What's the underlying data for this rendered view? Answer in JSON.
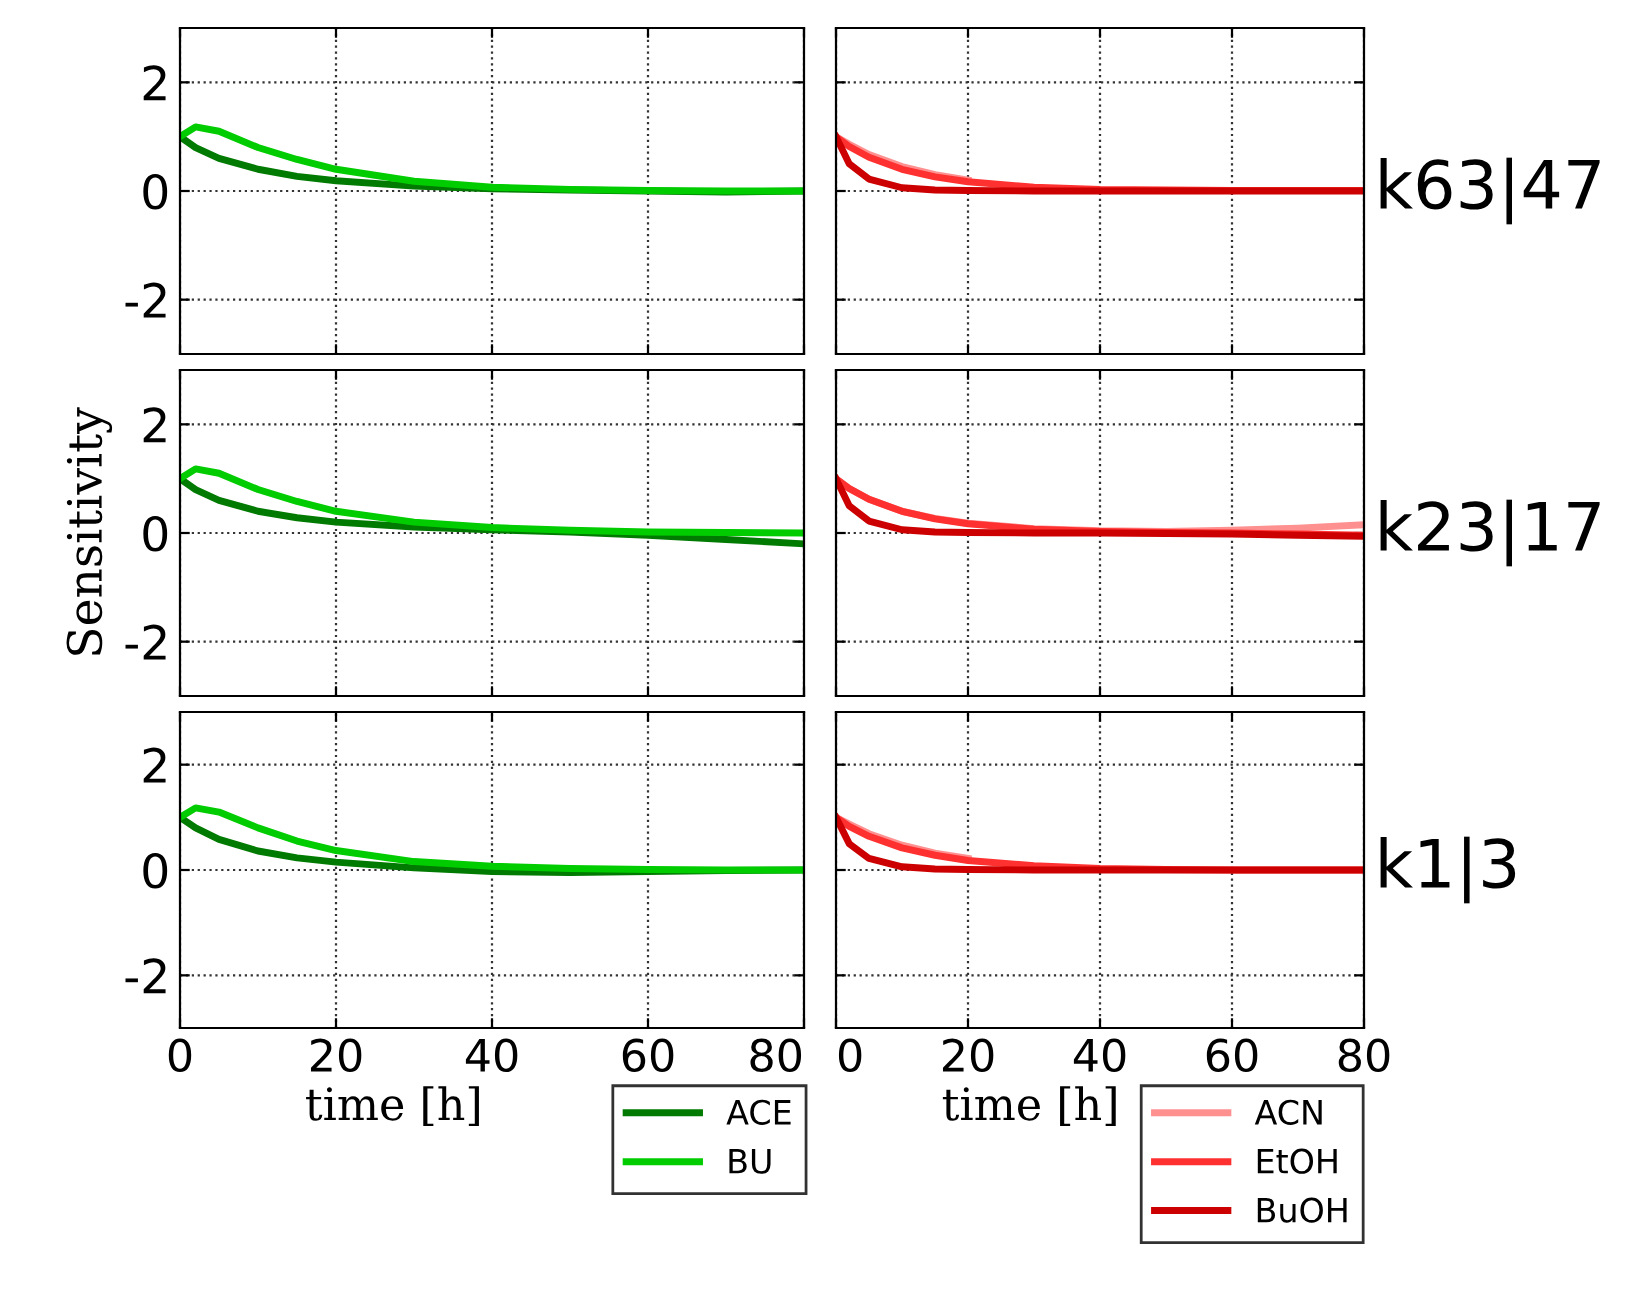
{
  "chart_data": [
    {
      "type": "line",
      "x": [
        0,
        2,
        5,
        10,
        15,
        20,
        30,
        40,
        50,
        60,
        70,
        80
      ],
      "xlim": [
        0,
        80
      ],
      "xticks": [
        0,
        20,
        40,
        60,
        80
      ],
      "ylim": [
        -3,
        3
      ],
      "yticks": [
        -2,
        0,
        2
      ],
      "grid": true,
      "tick_labels": "y",
      "legend": false,
      "series": [
        {
          "color": "#007a00",
          "values": [
            1.0,
            0.8,
            0.6,
            0.4,
            0.27,
            0.19,
            0.09,
            0.04,
            0.02,
            0.0,
            -0.02,
            0.0
          ]
        },
        {
          "color": "#00cc00",
          "values": [
            1.0,
            1.18,
            1.1,
            0.8,
            0.58,
            0.4,
            0.18,
            0.07,
            0.03,
            0.01,
            0.0,
            0.0
          ]
        }
      ]
    },
    {
      "type": "line",
      "x": [
        0,
        2,
        5,
        10,
        15,
        20,
        30,
        40,
        50,
        60,
        70,
        80
      ],
      "xlim": [
        0,
        80
      ],
      "xticks": [
        0,
        20,
        40,
        60,
        80
      ],
      "ylim": [
        -3,
        3
      ],
      "yticks": [
        -2,
        0,
        2
      ],
      "grid": true,
      "tick_labels": false,
      "legend": false,
      "annotations": [
        "k63|47"
      ],
      "series": [
        {
          "color": "#ff9090",
          "values": [
            1.0,
            0.86,
            0.67,
            0.45,
            0.3,
            0.2,
            null,
            null,
            null,
            null,
            null,
            null
          ]
        },
        {
          "color": "#ff3030",
          "values": [
            1.0,
            0.82,
            0.62,
            0.4,
            0.26,
            0.17,
            0.07,
            0.03,
            0.02,
            0.01,
            0.01,
            0.01
          ]
        },
        {
          "color": "#cc0000",
          "values": [
            1.0,
            0.5,
            0.22,
            0.06,
            0.02,
            0.01,
            0.0,
            0.0,
            0.0,
            0.0,
            0.0,
            0.0
          ]
        }
      ]
    },
    {
      "type": "line",
      "x": [
        0,
        2,
        5,
        10,
        15,
        20,
        30,
        40,
        50,
        60,
        70,
        80
      ],
      "xlim": [
        0,
        80
      ],
      "xticks": [
        0,
        20,
        40,
        60,
        80
      ],
      "ylim": [
        -3,
        3
      ],
      "yticks": [
        -2,
        0,
        2
      ],
      "grid": true,
      "tick_labels": "y",
      "legend": false,
      "ylabel": "Sensitivity",
      "series": [
        {
          "color": "#007a00",
          "values": [
            1.0,
            0.8,
            0.6,
            0.4,
            0.28,
            0.2,
            0.11,
            0.06,
            0.02,
            -0.04,
            -0.12,
            -0.2
          ]
        },
        {
          "color": "#00cc00",
          "values": [
            1.0,
            1.18,
            1.1,
            0.8,
            0.58,
            0.4,
            0.2,
            0.1,
            0.05,
            0.02,
            0.01,
            0.0
          ]
        }
      ]
    },
    {
      "type": "line",
      "x": [
        0,
        2,
        5,
        10,
        15,
        20,
        30,
        40,
        50,
        60,
        70,
        80
      ],
      "xlim": [
        0,
        80
      ],
      "xticks": [
        0,
        20,
        40,
        60,
        80
      ],
      "ylim": [
        -3,
        3
      ],
      "yticks": [
        -2,
        0,
        2
      ],
      "grid": true,
      "tick_labels": false,
      "legend": false,
      "annotations": [
        "k23|17"
      ],
      "series": [
        {
          "color": "#ff9090",
          "values": [
            1.0,
            0.82,
            0.62,
            0.4,
            0.27,
            0.18,
            0.08,
            0.04,
            0.03,
            0.05,
            0.09,
            0.15
          ]
        },
        {
          "color": "#ff3030",
          "values": [
            1.0,
            0.82,
            0.62,
            0.4,
            0.26,
            0.17,
            0.07,
            0.03,
            0.01,
            0.0,
            -0.02,
            -0.04
          ]
        },
        {
          "color": "#cc0000",
          "values": [
            1.0,
            0.5,
            0.22,
            0.06,
            0.02,
            0.01,
            0.0,
            0.0,
            -0.01,
            -0.02,
            -0.04,
            -0.06
          ]
        }
      ]
    },
    {
      "type": "line",
      "x": [
        0,
        2,
        5,
        10,
        15,
        20,
        30,
        40,
        50,
        60,
        70,
        80
      ],
      "xlim": [
        0,
        80
      ],
      "xticks": [
        0,
        20,
        40,
        60,
        80
      ],
      "ylim": [
        -3,
        3
      ],
      "yticks": [
        -2,
        0,
        2
      ],
      "grid": true,
      "legend": "bottom right",
      "xlabel": "time [h]",
      "series": [
        {
          "name": "ACE",
          "color": "#007a00",
          "values": [
            1.0,
            0.8,
            0.58,
            0.36,
            0.23,
            0.15,
            0.04,
            -0.03,
            -0.05,
            -0.03,
            -0.01,
            0.0
          ]
        },
        {
          "name": "BU",
          "color": "#00cc00",
          "values": [
            1.0,
            1.18,
            1.1,
            0.8,
            0.55,
            0.37,
            0.16,
            0.07,
            0.03,
            0.01,
            0.0,
            0.0
          ]
        }
      ]
    },
    {
      "type": "line",
      "x": [
        0,
        2,
        5,
        10,
        15,
        20,
        30,
        40,
        50,
        60,
        70,
        80
      ],
      "xlim": [
        0,
        80
      ],
      "xticks": [
        0,
        20,
        40,
        60,
        80
      ],
      "ylim": [
        -3,
        3
      ],
      "yticks": [
        -2,
        0,
        2
      ],
      "grid": true,
      "tick_labels": "x",
      "legend": "bottom right",
      "xlabel": "time [h]",
      "annotations": [
        "k1|3"
      ],
      "series": [
        {
          "name": "ACN",
          "color": "#ff9090",
          "values": [
            1.0,
            0.87,
            0.69,
            0.47,
            0.32,
            0.22,
            null,
            null,
            null,
            null,
            null,
            null
          ]
        },
        {
          "name": "EtOH",
          "color": "#ff3030",
          "values": [
            1.0,
            0.83,
            0.64,
            0.42,
            0.28,
            0.18,
            0.08,
            0.03,
            0.01,
            0.0,
            0.0,
            0.0
          ]
        },
        {
          "name": "BuOH",
          "color": "#cc0000",
          "values": [
            1.0,
            0.5,
            0.22,
            0.06,
            0.02,
            0.01,
            0.0,
            0.0,
            0.0,
            0.0,
            0.0,
            0.0
          ]
        }
      ]
    }
  ]
}
